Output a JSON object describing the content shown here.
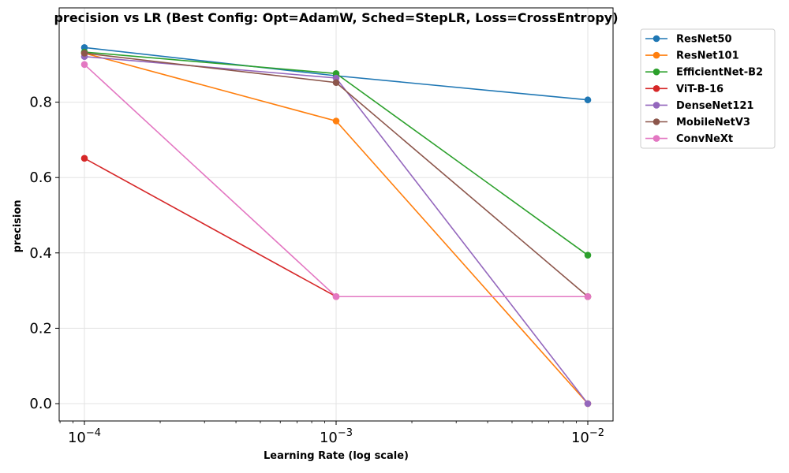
{
  "chart_data": {
    "type": "line",
    "title": "precision vs LR (Best Config: Opt=AdamW, Sched=StepLR, Loss=CrossEntropy)",
    "xlabel": "Learning Rate (log scale)",
    "ylabel": "precision",
    "x_scale": "log",
    "x": [
      0.0001,
      0.001,
      0.01
    ],
    "x_tick_labels": [
      {
        "base": "10",
        "exp": "−4"
      },
      {
        "base": "10",
        "exp": "−3"
      },
      {
        "base": "10",
        "exp": "−2"
      }
    ],
    "y_ticks": [
      0.0,
      0.2,
      0.4,
      0.6,
      0.8
    ],
    "y_tick_labels": [
      "0.0",
      "0.2",
      "0.4",
      "0.6",
      "0.8"
    ],
    "ylim": [
      -0.048,
      1.0
    ],
    "grid": true,
    "legend_position": "outside-top-right",
    "series": [
      {
        "name": "ResNet50",
        "color": "#1f77b4",
        "values": [
          0.945,
          0.87,
          0.806
        ]
      },
      {
        "name": "ResNet101",
        "color": "#ff7f0e",
        "values": [
          0.93,
          0.75,
          0.0
        ]
      },
      {
        "name": "EfficientNet-B2",
        "color": "#2ca02c",
        "values": [
          0.933,
          0.876,
          0.394
        ]
      },
      {
        "name": "ViT-B-16",
        "color": "#d62728",
        "values": [
          0.651,
          0.284,
          0.284
        ]
      },
      {
        "name": "DenseNet121",
        "color": "#9467bd",
        "values": [
          0.921,
          0.864,
          0.0
        ]
      },
      {
        "name": "MobileNetV3",
        "color": "#8c564b",
        "values": [
          0.93,
          0.852,
          0.284
        ]
      },
      {
        "name": "ConvNeXt",
        "color": "#e377c2",
        "values": [
          0.9,
          0.284,
          0.284
        ]
      }
    ]
  }
}
